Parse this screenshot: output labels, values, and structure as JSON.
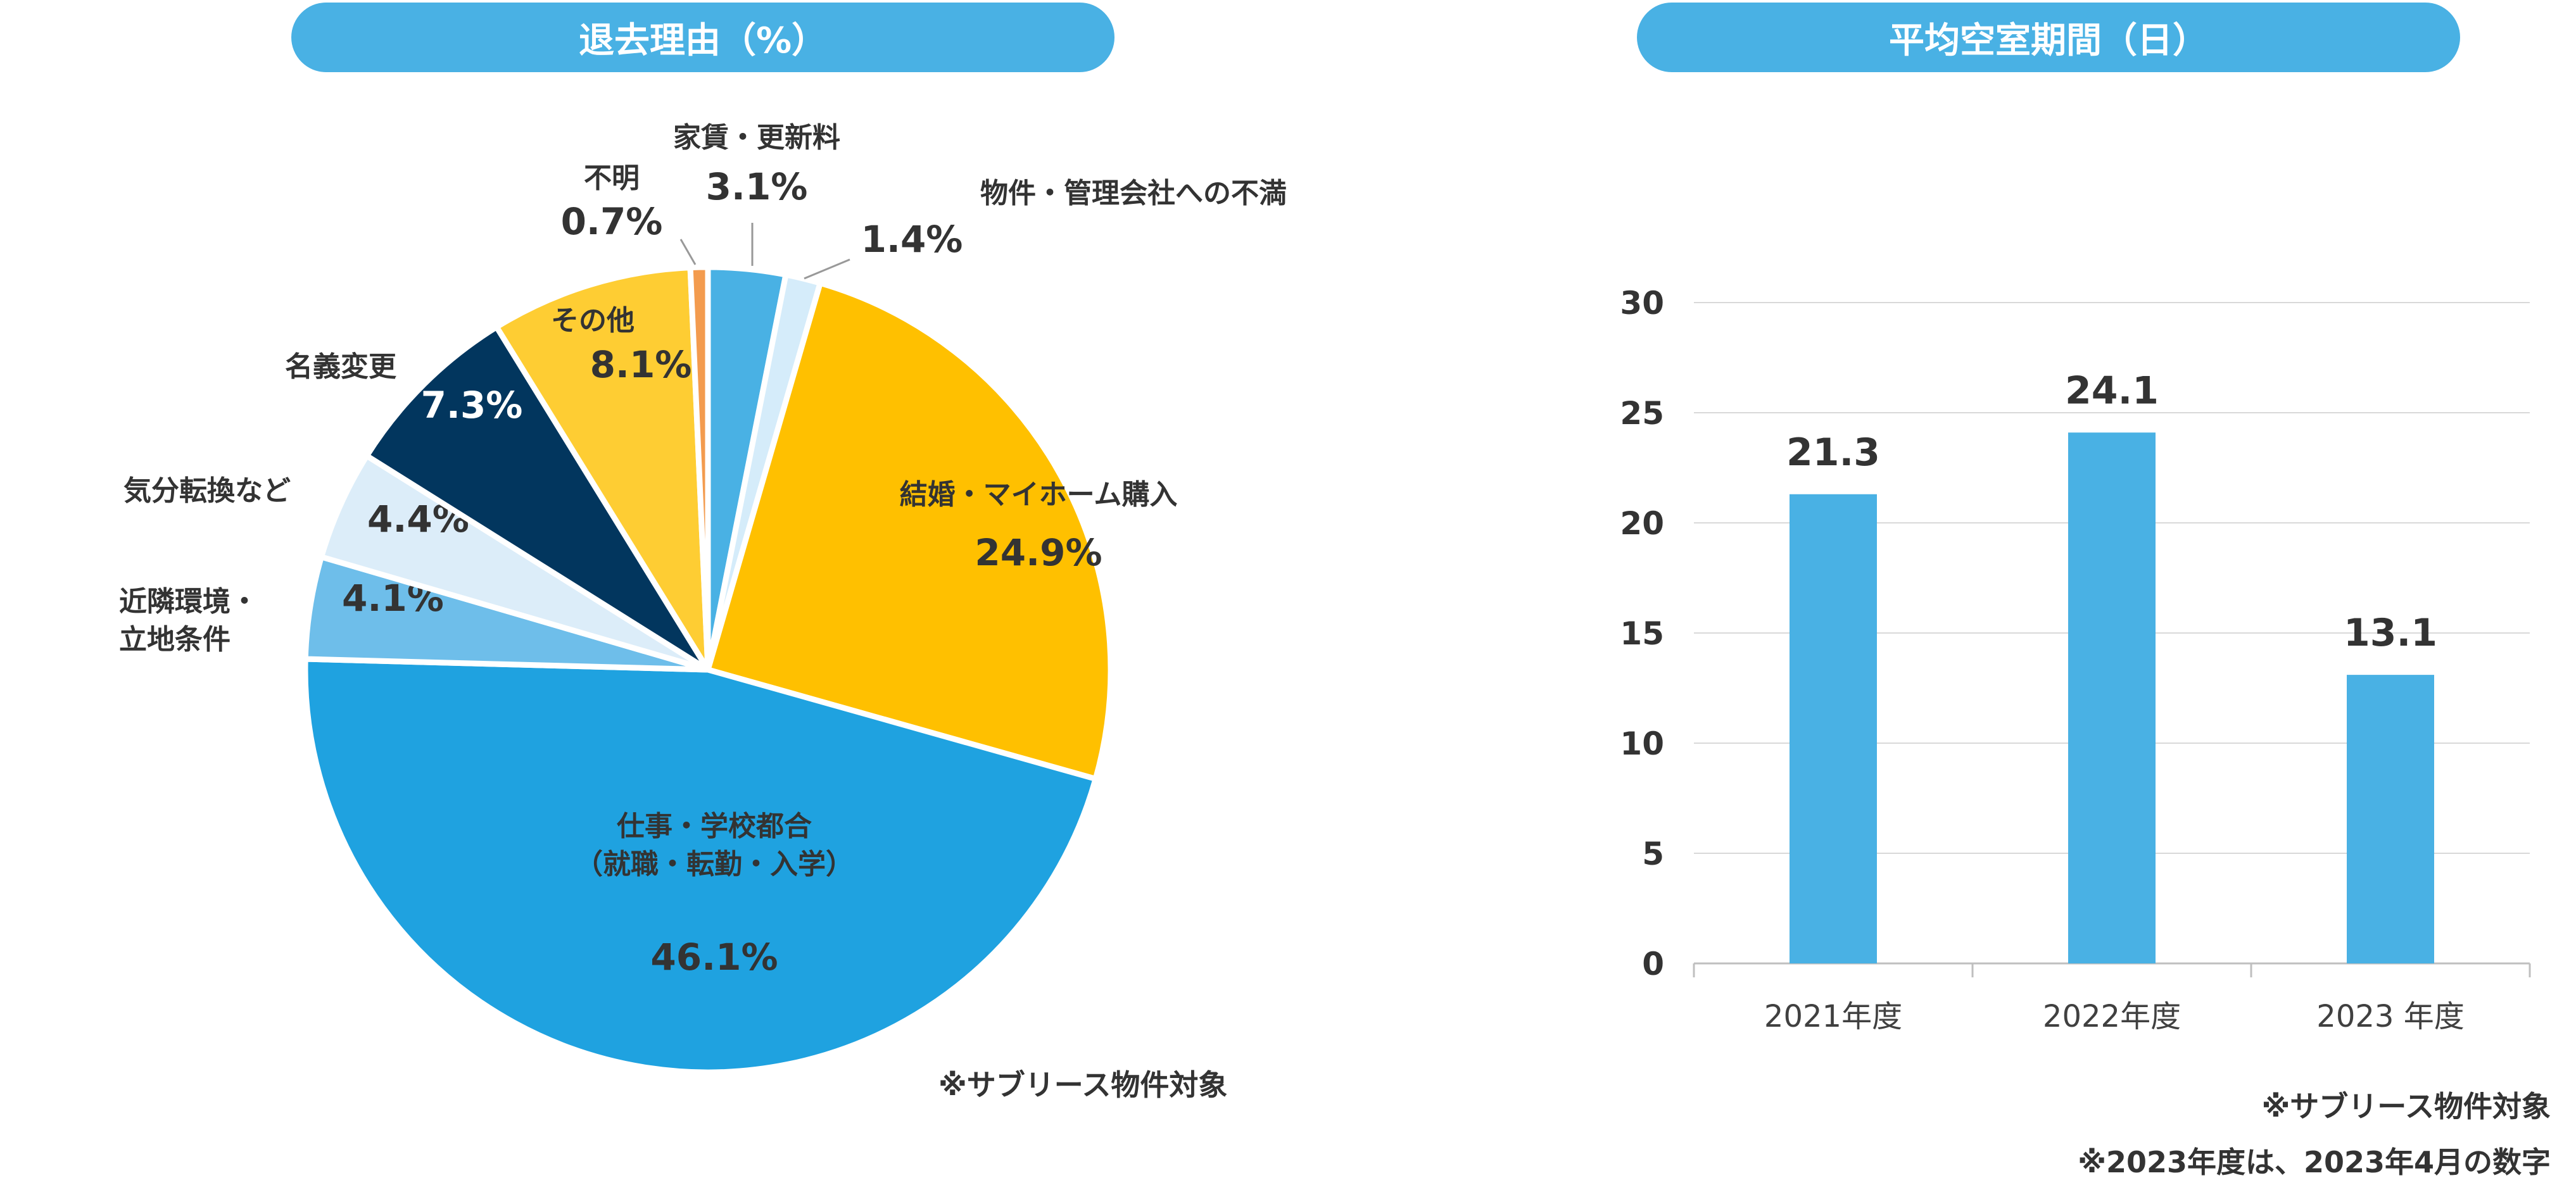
{
  "pie_title": "退去理由（%）",
  "bar_title": "平均空室期間（日）",
  "notes": {
    "pie_note": "※サブリース物件対象",
    "bar_note1": "※サブリース物件対象",
    "bar_note2": "※2023年度は、2023年4月の数字"
  },
  "chart_data": [
    {
      "type": "pie",
      "title": "退去理由（%）",
      "slices": [
        {
          "label": "家賃・更新料",
          "value": 3.1,
          "value_label": "3.1%",
          "color": "#49b1e4"
        },
        {
          "label": "物件・管理会社への不満",
          "value": 1.4,
          "value_label": "1.4%",
          "color": "#d5ecfa"
        },
        {
          "label": "結婚・マイホーム購入",
          "value": 24.9,
          "value_label": "24.9%",
          "color": "#ffc000"
        },
        {
          "label": "仕事・学校都合\n（就職・転勤・入学）",
          "value": 46.1,
          "value_label": "46.1%",
          "color": "#1fa2e0"
        },
        {
          "label": "近隣環境・\n立地条件",
          "value": 4.1,
          "value_label": "4.1%",
          "color": "#6ebeea"
        },
        {
          "label": "気分転換など",
          "value": 4.4,
          "value_label": "4.4%",
          "color": "#dcedf9"
        },
        {
          "label": "名義変更",
          "value": 7.3,
          "value_label": "7.3%",
          "color": "#02365e"
        },
        {
          "label": "その他",
          "value": 8.1,
          "value_label": "8.1%",
          "color": "#fecd33"
        },
        {
          "label": "不明",
          "value": 0.7,
          "value_label": "0.7%",
          "color": "#f39b4e"
        }
      ]
    },
    {
      "type": "bar",
      "title": "平均空室期間（日）",
      "categories": [
        "2021年度",
        "2022年度",
        "2023 年度"
      ],
      "values": [
        21.3,
        24.1,
        13.1
      ],
      "value_labels": [
        "21.3",
        "24.1",
        "13.1"
      ],
      "ylim": [
        0,
        30
      ],
      "yticks": [
        0,
        5,
        10,
        15,
        20,
        25,
        30
      ],
      "grid": true,
      "bar_color": "#49b1e4"
    }
  ]
}
